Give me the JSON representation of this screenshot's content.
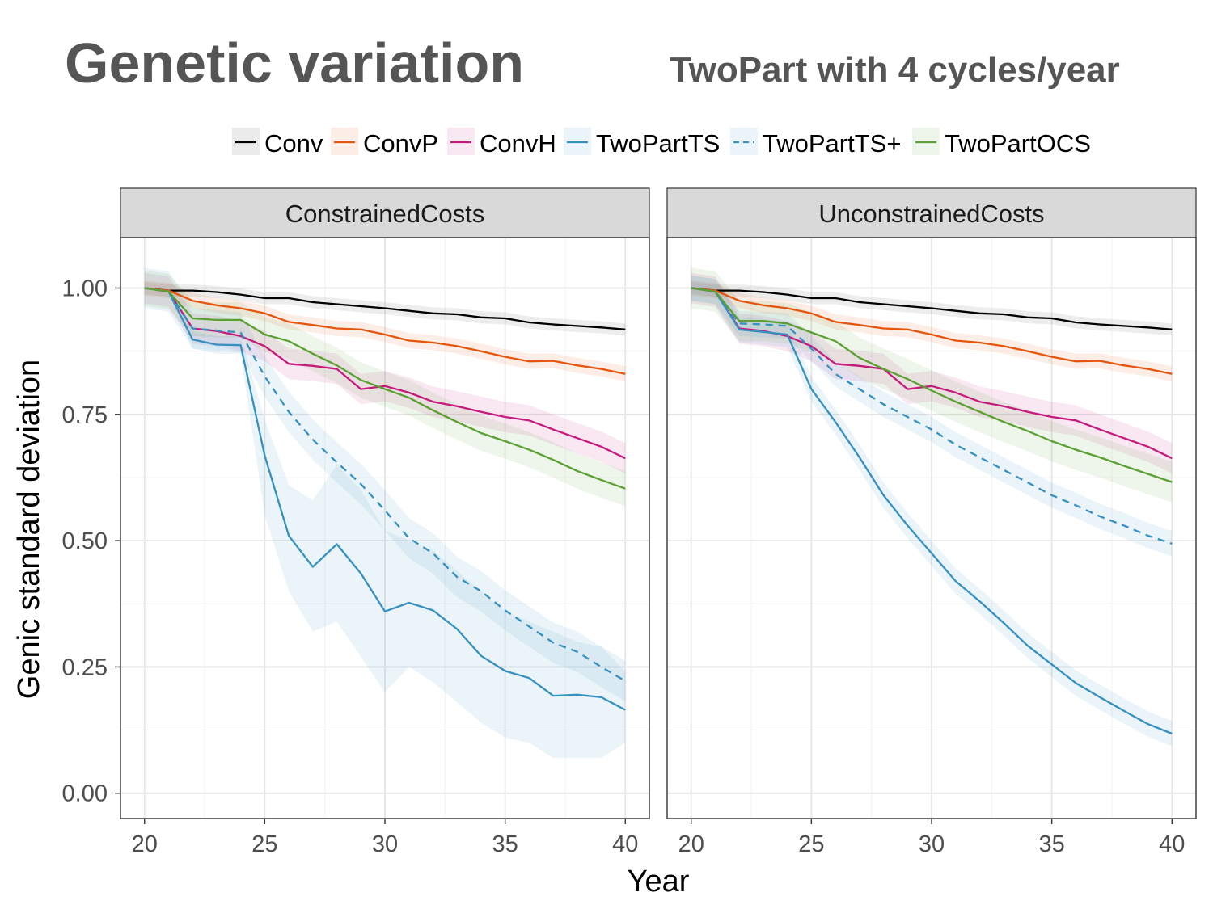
{
  "slide": {
    "title": "Genetic variation",
    "subtitle": "TwoPart with 4 cycles/year"
  },
  "colors": {
    "Conv": "#000000",
    "ConvP": "#e6550d",
    "ConvH": "#c51b7d",
    "TwoPartTS": "#3690c0",
    "TwoPartTS+": "#3690c0",
    "TwoPartOCS": "#5aa032"
  },
  "chart_data": {
    "type": "line",
    "xlabel": "Year",
    "ylabel": "Genic standard deviation",
    "xlim": [
      19,
      41
    ],
    "ylim": [
      -0.05,
      1.1
    ],
    "x_ticks": [
      20,
      25,
      30,
      35,
      40
    ],
    "y_ticks": [
      0.0,
      0.25,
      0.5,
      0.75,
      1.0
    ],
    "y_tick_labels": [
      "0.00",
      "0.25",
      "0.50",
      "0.75",
      "1.00"
    ],
    "grid": true,
    "legend_position": "top",
    "legend": [
      "Conv",
      "ConvP",
      "ConvH",
      "TwoPartTS",
      "TwoPartTS+",
      "TwoPartOCS"
    ],
    "x": [
      20,
      21,
      22,
      23,
      24,
      25,
      26,
      27,
      28,
      29,
      30,
      31,
      32,
      33,
      34,
      35,
      36,
      37,
      38,
      39,
      40
    ],
    "panels": [
      {
        "name": "ConstrainedCosts",
        "series": [
          {
            "name": "Conv",
            "style": "solid",
            "values": [
              1.0,
              0.995,
              0.995,
              0.992,
              0.987,
              0.98,
              0.98,
              0.972,
              0.968,
              0.964,
              0.96,
              0.955,
              0.95,
              0.948,
              0.942,
              0.94,
              0.932,
              0.928,
              0.925,
              0.922,
              0.918
            ],
            "band": 0.012
          },
          {
            "name": "ConvP",
            "style": "solid",
            "values": [
              1.0,
              0.995,
              0.975,
              0.966,
              0.96,
              0.95,
              0.933,
              0.927,
              0.92,
              0.918,
              0.908,
              0.896,
              0.892,
              0.885,
              0.875,
              0.864,
              0.855,
              0.856,
              0.847,
              0.84,
              0.83
            ],
            "band": 0.015
          },
          {
            "name": "ConvH",
            "style": "solid",
            "values": [
              1.0,
              0.993,
              0.92,
              0.915,
              0.905,
              0.885,
              0.85,
              0.846,
              0.84,
              0.8,
              0.806,
              0.793,
              0.775,
              0.766,
              0.755,
              0.745,
              0.738,
              0.72,
              0.703,
              0.686,
              0.663
            ],
            "band": 0.03
          },
          {
            "name": "TwoPartTS",
            "style": "solid",
            "values": [
              1.0,
              0.993,
              0.898,
              0.888,
              0.887,
              0.668,
              0.51,
              0.448,
              0.493,
              0.435,
              0.36,
              0.377,
              0.362,
              0.325,
              0.272,
              0.242,
              0.228,
              0.193,
              0.195,
              0.19,
              0.165
            ],
            "band_lower": [
              1.0,
              0.99,
              0.88,
              0.87,
              0.87,
              0.55,
              0.4,
              0.32,
              0.34,
              0.27,
              0.2,
              0.25,
              0.22,
              0.18,
              0.14,
              0.11,
              0.1,
              0.07,
              0.07,
              0.07,
              0.1
            ],
            "band_upper": [
              1.0,
              0.996,
              0.915,
              0.905,
              0.905,
              0.74,
              0.61,
              0.58,
              0.65,
              0.6,
              0.52,
              0.5,
              0.48,
              0.44,
              0.4,
              0.36,
              0.34,
              0.32,
              0.3,
              0.29,
              0.24
            ]
          },
          {
            "name": "TwoPartTS+",
            "style": "dashed",
            "values": [
              1.0,
              0.993,
              0.92,
              0.916,
              0.912,
              0.825,
              0.755,
              0.7,
              0.655,
              0.612,
              0.56,
              0.505,
              0.475,
              0.428,
              0.4,
              0.362,
              0.33,
              0.298,
              0.28,
              0.25,
              0.222
            ],
            "band": 0.04
          },
          {
            "name": "TwoPartOCS",
            "style": "solid",
            "values": [
              1.0,
              0.993,
              0.94,
              0.937,
              0.937,
              0.908,
              0.895,
              0.87,
              0.847,
              0.818,
              0.8,
              0.783,
              0.758,
              0.735,
              0.713,
              0.697,
              0.68,
              0.66,
              0.638,
              0.62,
              0.603
            ],
            "band": 0.035
          }
        ]
      },
      {
        "name": "UnconstrainedCosts",
        "series": [
          {
            "name": "Conv",
            "style": "solid",
            "values": [
              1.0,
              0.995,
              0.995,
              0.992,
              0.987,
              0.98,
              0.98,
              0.972,
              0.968,
              0.964,
              0.96,
              0.955,
              0.95,
              0.948,
              0.942,
              0.94,
              0.932,
              0.928,
              0.925,
              0.922,
              0.918
            ],
            "band": 0.012
          },
          {
            "name": "ConvP",
            "style": "solid",
            "values": [
              1.0,
              0.995,
              0.975,
              0.966,
              0.96,
              0.95,
              0.933,
              0.927,
              0.92,
              0.918,
              0.908,
              0.896,
              0.892,
              0.885,
              0.875,
              0.864,
              0.855,
              0.856,
              0.847,
              0.84,
              0.83
            ],
            "band": 0.015
          },
          {
            "name": "ConvH",
            "style": "solid",
            "values": [
              1.0,
              0.993,
              0.92,
              0.915,
              0.905,
              0.885,
              0.85,
              0.846,
              0.84,
              0.8,
              0.806,
              0.793,
              0.775,
              0.766,
              0.755,
              0.745,
              0.738,
              0.72,
              0.703,
              0.686,
              0.663
            ],
            "band": 0.03
          },
          {
            "name": "TwoPartTS",
            "style": "solid",
            "values": [
              1.0,
              0.993,
              0.918,
              0.913,
              0.908,
              0.8,
              0.735,
              0.665,
              0.59,
              0.53,
              0.475,
              0.42,
              0.38,
              0.337,
              0.292,
              0.255,
              0.218,
              0.19,
              0.163,
              0.137,
              0.118
            ],
            "band": 0.025
          },
          {
            "name": "TwoPartTS+",
            "style": "dashed",
            "values": [
              1.0,
              0.993,
              0.93,
              0.928,
              0.925,
              0.88,
              0.83,
              0.8,
              0.77,
              0.745,
              0.72,
              0.69,
              0.665,
              0.64,
              0.615,
              0.59,
              0.57,
              0.548,
              0.53,
              0.51,
              0.494
            ],
            "band": 0.025
          },
          {
            "name": "TwoPartOCS",
            "style": "solid",
            "values": [
              1.0,
              0.993,
              0.935,
              0.935,
              0.93,
              0.912,
              0.895,
              0.862,
              0.84,
              0.82,
              0.797,
              0.775,
              0.755,
              0.735,
              0.717,
              0.697,
              0.68,
              0.665,
              0.648,
              0.632,
              0.616
            ],
            "band": 0.04
          }
        ]
      }
    ]
  }
}
